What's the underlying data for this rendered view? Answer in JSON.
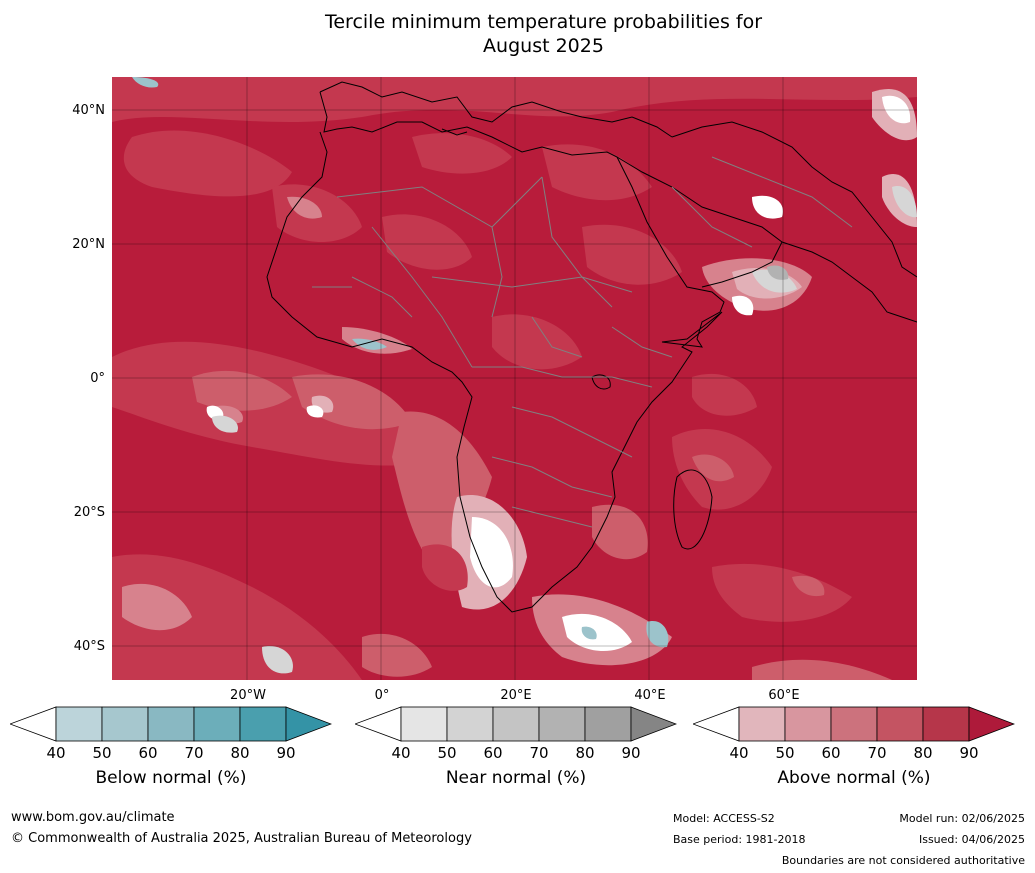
{
  "title_line1": "Tercile minimum temperature probabilities for",
  "title_line2": "August 2025",
  "lat_labels": [
    "40°N",
    "20°N",
    "0°",
    "20°S",
    "40°S"
  ],
  "lon_labels": [
    "20°W",
    "0°",
    "20°E",
    "40°E",
    "60°E"
  ],
  "colorbars": [
    {
      "name": "Below normal (%)",
      "ticks": [
        "40",
        "50",
        "60",
        "70",
        "80",
        "90"
      ],
      "colors": [
        "#bcd4da",
        "#a6c7ce",
        "#89b8c2",
        "#6caeba",
        "#4a9fae"
      ],
      "end_color": "#3493a6"
    },
    {
      "name": "Near normal (%)",
      "ticks": [
        "40",
        "50",
        "60",
        "70",
        "80",
        "90"
      ],
      "colors": [
        "#e5e5e5",
        "#d3d3d3",
        "#c4c4c4",
        "#b2b2b2",
        "#a0a0a0"
      ],
      "end_color": "#858585"
    },
    {
      "name": "Above normal (%)",
      "ticks": [
        "40",
        "50",
        "60",
        "70",
        "80",
        "90"
      ],
      "colors": [
        "#e1b6bc",
        "#d8969f",
        "#cc727d",
        "#c45462",
        "#b6364a"
      ],
      "end_color": "#ae1a3a"
    }
  ],
  "colors": {
    "above_90": "#b81c3b",
    "above_80": "#c4384f",
    "above_70": "#cd5e6b",
    "above_60": "#d7828d",
    "above_50": "#e2b0b7",
    "near": "#d6d6d6",
    "below": "#9cc3cb",
    "coast": "#000000",
    "border": "#808080"
  },
  "footer": {
    "website": "www.bom.gov.au/climate",
    "copyright": "© Commonwealth of Australia 2025, Australian Bureau of Meteorology",
    "model": "Model: ACCESS-S2",
    "base_period": "Base period: 1981-2018",
    "model_run": "Model run: 02/06/2025",
    "issued": "Issued: 04/06/2025",
    "disclaimer": "Boundaries are not considered authoritative"
  }
}
